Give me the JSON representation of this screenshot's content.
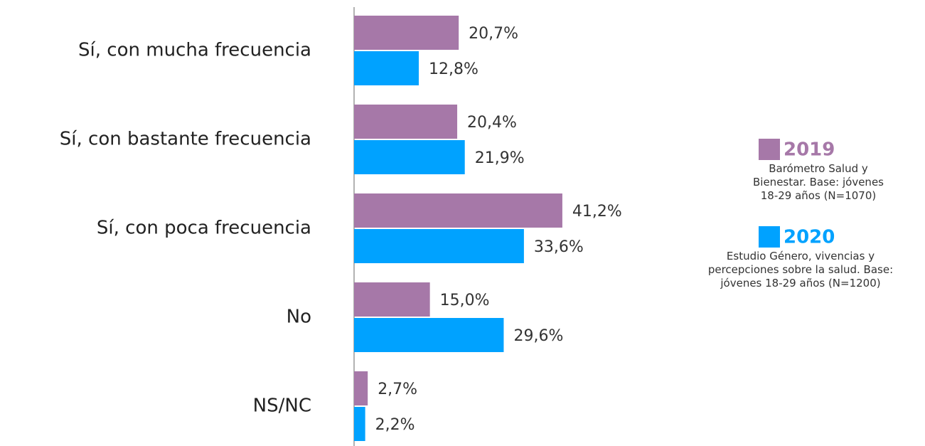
{
  "chart_data": {
    "type": "bar",
    "orientation": "horizontal",
    "categories": [
      "Sí, con mucha frecuencia",
      "Sí, con bastante frecuencia",
      "Sí, con poca frecuencia",
      "No",
      "NS/NC"
    ],
    "xlim": [
      0,
      100
    ],
    "series": [
      {
        "name": "2019",
        "color": "#a678a8",
        "description": "Barómetro Salud y Bienestar. Base: jóvenes 18-29 años (N=1070)",
        "values": [
          20.7,
          20.4,
          41.2,
          15.0,
          2.7
        ],
        "value_labels": [
          "20,7%",
          "20,4%",
          "41,2%",
          "15,0%",
          "2,7%"
        ]
      },
      {
        "name": "2020",
        "color": "#00a2ff",
        "description": "Estudio Género, vivencias y percepciones sobre la salud. Base: jóvenes 18-29 años (N=1200)",
        "values": [
          12.8,
          21.9,
          33.6,
          29.6,
          2.2
        ],
        "value_labels": [
          "12,8%",
          "21,9%",
          "33,6%",
          "29,6%",
          "2,2%"
        ]
      }
    ]
  }
}
